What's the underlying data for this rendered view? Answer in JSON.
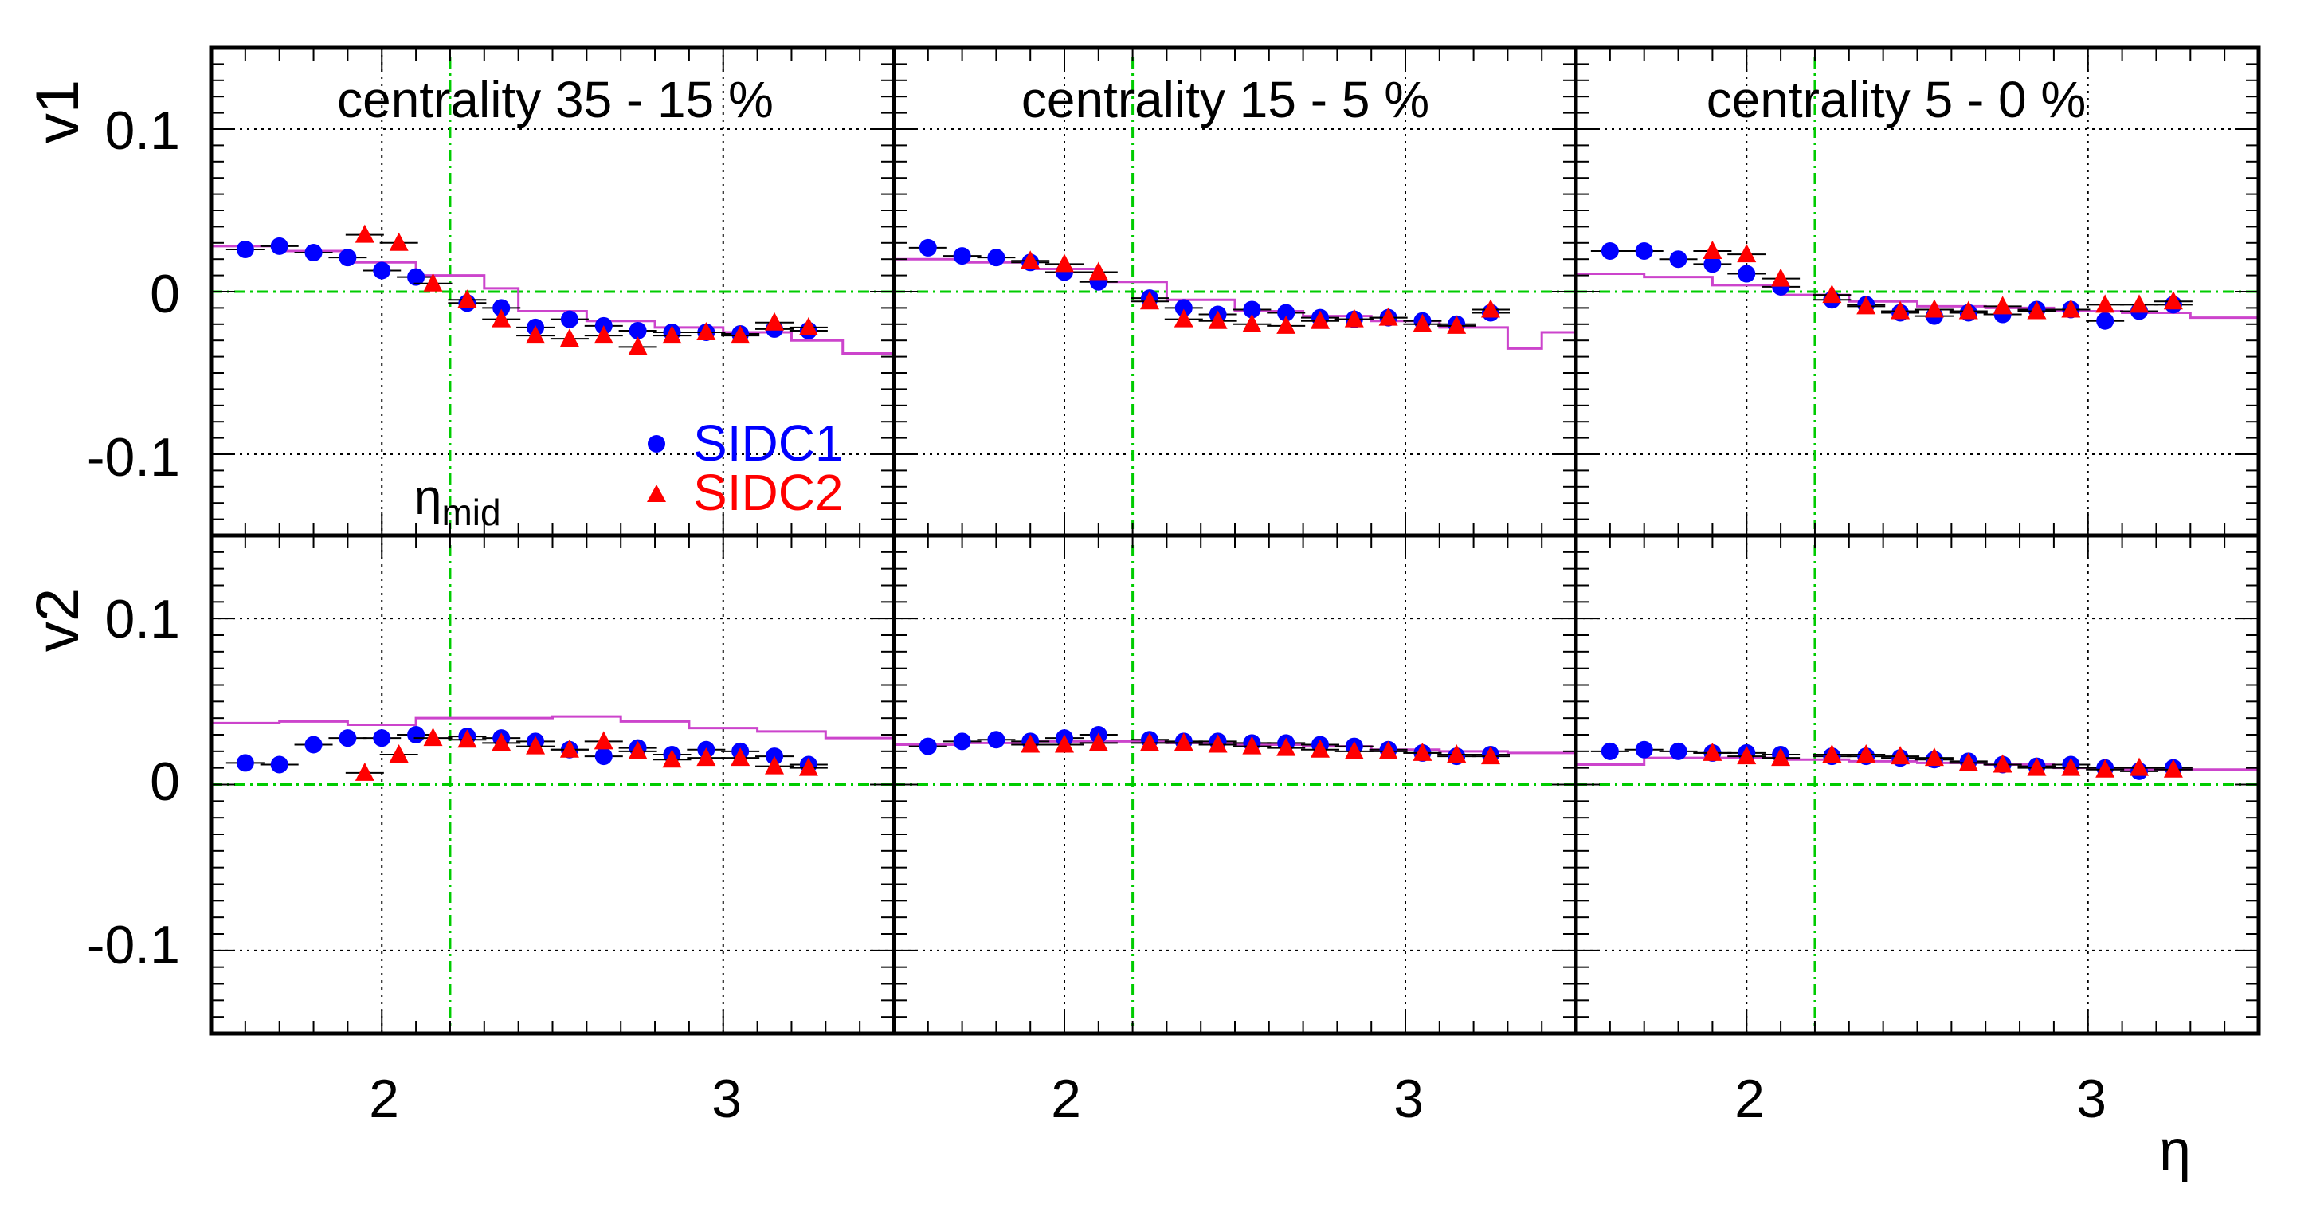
{
  "chart_data": {
    "type": "scatter",
    "xlabel": "η",
    "xlim": [
      1.5,
      3.5
    ],
    "ylim": [
      -0.15,
      0.15
    ],
    "x_ticks": [
      "2",
      "3"
    ],
    "y_ticks": [
      "0.1",
      "0",
      "-0.1"
    ],
    "rows": [
      "v1",
      "v2"
    ],
    "eta_mid": 2.2,
    "grid": true,
    "legend": {
      "placement": "lower-right of first panel",
      "entries": [
        {
          "name": "SIDC1",
          "marker": "circle",
          "color": "#0000ff"
        },
        {
          "name": "SIDC2",
          "marker": "triangle",
          "color": "#ff0000"
        }
      ]
    },
    "annotation": {
      "base": "η",
      "sub": "mid"
    },
    "colors": {
      "sidc1": "#0000ff",
      "sidc2": "#ff0000",
      "model": "#cc44cc",
      "reference": "#00cc00",
      "grid": "#000000"
    },
    "panels": [
      {
        "title": "centrality 35 - 15 %",
        "v1": {
          "sidc1": [
            [
              1.6,
              0.026
            ],
            [
              1.7,
              0.028
            ],
            [
              1.8,
              0.024
            ],
            [
              1.9,
              0.021
            ],
            [
              2.0,
              0.013
            ],
            [
              2.1,
              0.009
            ],
            [
              2.25,
              -0.007
            ],
            [
              2.35,
              -0.01
            ],
            [
              2.45,
              -0.022
            ],
            [
              2.55,
              -0.017
            ],
            [
              2.65,
              -0.021
            ],
            [
              2.75,
              -0.024
            ],
            [
              2.85,
              -0.025
            ],
            [
              2.95,
              -0.025
            ],
            [
              3.05,
              -0.026
            ],
            [
              3.15,
              -0.023
            ],
            [
              3.25,
              -0.024
            ]
          ],
          "sidc2": [
            [
              1.95,
              0.035
            ],
            [
              2.05,
              0.03
            ],
            [
              2.15,
              0.005
            ],
            [
              2.25,
              -0.005
            ],
            [
              2.35,
              -0.017
            ],
            [
              2.45,
              -0.027
            ],
            [
              2.55,
              -0.029
            ],
            [
              2.65,
              -0.027
            ],
            [
              2.75,
              -0.034
            ],
            [
              2.85,
              -0.027
            ],
            [
              2.95,
              -0.025
            ],
            [
              3.05,
              -0.027
            ],
            [
              3.15,
              -0.019
            ],
            [
              3.25,
              -0.022
            ]
          ],
          "model": [
            [
              1.5,
              0.028
            ],
            [
              1.7,
              0.025
            ],
            [
              1.9,
              0.018
            ],
            [
              2.1,
              0.01
            ],
            [
              2.3,
              0.002
            ],
            [
              2.4,
              -0.012
            ],
            [
              2.6,
              -0.018
            ],
            [
              2.8,
              -0.022
            ],
            [
              3.0,
              -0.025
            ],
            [
              3.2,
              -0.03
            ],
            [
              3.35,
              -0.038
            ],
            [
              3.5,
              -0.043
            ]
          ]
        },
        "v2": {
          "sidc1": [
            [
              1.6,
              0.013
            ],
            [
              1.7,
              0.012
            ],
            [
              1.8,
              0.024
            ],
            [
              1.9,
              0.028
            ],
            [
              2.0,
              0.028
            ],
            [
              2.1,
              0.03
            ],
            [
              2.25,
              0.029
            ],
            [
              2.35,
              0.028
            ],
            [
              2.45,
              0.026
            ],
            [
              2.55,
              0.021
            ],
            [
              2.65,
              0.017
            ],
            [
              2.75,
              0.022
            ],
            [
              2.85,
              0.018
            ],
            [
              2.95,
              0.021
            ],
            [
              3.05,
              0.02
            ],
            [
              3.15,
              0.017
            ],
            [
              3.25,
              0.012
            ]
          ],
          "sidc2": [
            [
              1.95,
              0.007
            ],
            [
              2.05,
              0.018
            ],
            [
              2.15,
              0.028
            ],
            [
              2.25,
              0.027
            ],
            [
              2.35,
              0.025
            ],
            [
              2.45,
              0.023
            ],
            [
              2.55,
              0.021
            ],
            [
              2.65,
              0.026
            ],
            [
              2.75,
              0.02
            ],
            [
              2.85,
              0.015
            ],
            [
              2.95,
              0.016
            ],
            [
              3.05,
              0.016
            ],
            [
              3.15,
              0.011
            ],
            [
              3.25,
              0.01
            ]
          ],
          "model": [
            [
              1.5,
              0.037
            ],
            [
              1.7,
              0.038
            ],
            [
              1.9,
              0.036
            ],
            [
              2.1,
              0.04
            ],
            [
              2.3,
              0.04
            ],
            [
              2.5,
              0.041
            ],
            [
              2.7,
              0.038
            ],
            [
              2.9,
              0.034
            ],
            [
              3.1,
              0.032
            ],
            [
              3.3,
              0.028
            ],
            [
              3.5,
              0.026
            ]
          ]
        }
      },
      {
        "title": "centrality 15 - 5 %",
        "v1": {
          "sidc1": [
            [
              1.6,
              0.027
            ],
            [
              1.7,
              0.022
            ],
            [
              1.8,
              0.021
            ],
            [
              1.9,
              0.018
            ],
            [
              2.0,
              0.012
            ],
            [
              2.1,
              0.006
            ],
            [
              2.25,
              -0.004
            ],
            [
              2.35,
              -0.01
            ],
            [
              2.45,
              -0.014
            ],
            [
              2.55,
              -0.011
            ],
            [
              2.65,
              -0.013
            ],
            [
              2.75,
              -0.016
            ],
            [
              2.85,
              -0.017
            ],
            [
              2.95,
              -0.016
            ],
            [
              3.05,
              -0.018
            ],
            [
              3.15,
              -0.02
            ],
            [
              3.25,
              -0.013
            ]
          ],
          "sidc2": [
            [
              1.9,
              0.019
            ],
            [
              2.0,
              0.017
            ],
            [
              2.1,
              0.012
            ],
            [
              2.25,
              -0.006
            ],
            [
              2.35,
              -0.017
            ],
            [
              2.45,
              -0.018
            ],
            [
              2.55,
              -0.02
            ],
            [
              2.65,
              -0.021
            ],
            [
              2.75,
              -0.018
            ],
            [
              2.85,
              -0.017
            ],
            [
              2.95,
              -0.016
            ],
            [
              3.05,
              -0.02
            ],
            [
              3.15,
              -0.021
            ],
            [
              3.25,
              -0.011
            ]
          ],
          "model": [
            [
              1.5,
              0.02
            ],
            [
              1.7,
              0.018
            ],
            [
              1.9,
              0.014
            ],
            [
              2.1,
              0.006
            ],
            [
              2.3,
              -0.005
            ],
            [
              2.5,
              -0.012
            ],
            [
              2.7,
              -0.015
            ],
            [
              2.9,
              -0.018
            ],
            [
              3.1,
              -0.022
            ],
            [
              3.3,
              -0.035
            ],
            [
              3.4,
              -0.025
            ]
          ]
        },
        "v2": {
          "sidc1": [
            [
              1.6,
              0.023
            ],
            [
              1.7,
              0.026
            ],
            [
              1.8,
              0.027
            ],
            [
              1.9,
              0.026
            ],
            [
              2.0,
              0.028
            ],
            [
              2.1,
              0.03
            ],
            [
              2.25,
              0.027
            ],
            [
              2.35,
              0.026
            ],
            [
              2.45,
              0.026
            ],
            [
              2.55,
              0.025
            ],
            [
              2.65,
              0.025
            ],
            [
              2.75,
              0.024
            ],
            [
              2.85,
              0.023
            ],
            [
              2.95,
              0.021
            ],
            [
              3.05,
              0.019
            ],
            [
              3.15,
              0.017
            ],
            [
              3.25,
              0.018
            ]
          ],
          "sidc2": [
            [
              1.9,
              0.024
            ],
            [
              2.0,
              0.024
            ],
            [
              2.1,
              0.025
            ],
            [
              2.25,
              0.025
            ],
            [
              2.35,
              0.025
            ],
            [
              2.45,
              0.024
            ],
            [
              2.55,
              0.023
            ],
            [
              2.65,
              0.022
            ],
            [
              2.75,
              0.021
            ],
            [
              2.85,
              0.02
            ],
            [
              2.95,
              0.02
            ],
            [
              3.05,
              0.019
            ],
            [
              3.15,
              0.018
            ],
            [
              3.25,
              0.017
            ]
          ],
          "model": [
            [
              1.5,
              0.024
            ],
            [
              1.7,
              0.025
            ],
            [
              1.9,
              0.026
            ],
            [
              2.1,
              0.026
            ],
            [
              2.3,
              0.025
            ],
            [
              2.5,
              0.024
            ],
            [
              2.7,
              0.023
            ],
            [
              2.9,
              0.021
            ],
            [
              3.1,
              0.02
            ],
            [
              3.3,
              0.019
            ],
            [
              3.5,
              0.018
            ]
          ]
        }
      },
      {
        "title": "centrality 5 - 0 %",
        "v1": {
          "sidc1": [
            [
              1.6,
              0.025
            ],
            [
              1.7,
              0.025
            ],
            [
              1.8,
              0.02
            ],
            [
              1.9,
              0.017
            ],
            [
              2.0,
              0.011
            ],
            [
              2.1,
              0.003
            ],
            [
              2.25,
              -0.005
            ],
            [
              2.35,
              -0.008
            ],
            [
              2.45,
              -0.013
            ],
            [
              2.55,
              -0.015
            ],
            [
              2.65,
              -0.013
            ],
            [
              2.75,
              -0.014
            ],
            [
              2.85,
              -0.011
            ],
            [
              2.95,
              -0.011
            ],
            [
              3.05,
              -0.018
            ],
            [
              3.15,
              -0.012
            ],
            [
              3.25,
              -0.008
            ]
          ],
          "sidc2": [
            [
              1.9,
              0.025
            ],
            [
              2.0,
              0.023
            ],
            [
              2.1,
              0.008
            ],
            [
              2.25,
              -0.002
            ],
            [
              2.35,
              -0.009
            ],
            [
              2.45,
              -0.012
            ],
            [
              2.55,
              -0.011
            ],
            [
              2.65,
              -0.012
            ],
            [
              2.75,
              -0.009
            ],
            [
              2.85,
              -0.012
            ],
            [
              2.95,
              -0.011
            ],
            [
              3.05,
              -0.008
            ],
            [
              3.15,
              -0.008
            ],
            [
              3.25,
              -0.006
            ]
          ],
          "model": [
            [
              1.5,
              0.011
            ],
            [
              1.7,
              0.009
            ],
            [
              1.9,
              0.004
            ],
            [
              2.1,
              -0.002
            ],
            [
              2.3,
              -0.006
            ],
            [
              2.5,
              -0.009
            ],
            [
              2.7,
              -0.01
            ],
            [
              2.9,
              -0.012
            ],
            [
              3.1,
              -0.013
            ],
            [
              3.3,
              -0.016
            ],
            [
              3.5,
              -0.019
            ]
          ]
        },
        "v2": {
          "sidc1": [
            [
              1.6,
              0.02
            ],
            [
              1.7,
              0.021
            ],
            [
              1.8,
              0.02
            ],
            [
              1.9,
              0.019
            ],
            [
              2.0,
              0.019
            ],
            [
              2.1,
              0.018
            ],
            [
              2.25,
              0.017
            ],
            [
              2.35,
              0.017
            ],
            [
              2.45,
              0.016
            ],
            [
              2.55,
              0.015
            ],
            [
              2.65,
              0.014
            ],
            [
              2.75,
              0.012
            ],
            [
              2.85,
              0.011
            ],
            [
              2.95,
              0.012
            ],
            [
              3.05,
              0.01
            ],
            [
              3.15,
              0.008
            ],
            [
              3.25,
              0.01
            ]
          ],
          "sidc2": [
            [
              1.9,
              0.019
            ],
            [
              2.0,
              0.017
            ],
            [
              2.1,
              0.016
            ],
            [
              2.25,
              0.018
            ],
            [
              2.35,
              0.018
            ],
            [
              2.45,
              0.017
            ],
            [
              2.55,
              0.016
            ],
            [
              2.65,
              0.013
            ],
            [
              2.75,
              0.012
            ],
            [
              2.85,
              0.01
            ],
            [
              2.95,
              0.01
            ],
            [
              3.05,
              0.009
            ],
            [
              3.15,
              0.01
            ],
            [
              3.25,
              0.009
            ]
          ],
          "model": [
            [
              1.5,
              0.012
            ],
            [
              1.7,
              0.016
            ],
            [
              1.9,
              0.016
            ],
            [
              2.1,
              0.015
            ],
            [
              2.3,
              0.014
            ],
            [
              2.5,
              0.013
            ],
            [
              2.7,
              0.012
            ],
            [
              2.9,
              0.01
            ],
            [
              3.1,
              0.009
            ],
            [
              3.3,
              0.009
            ],
            [
              3.5,
              0.012
            ]
          ]
        }
      }
    ]
  }
}
